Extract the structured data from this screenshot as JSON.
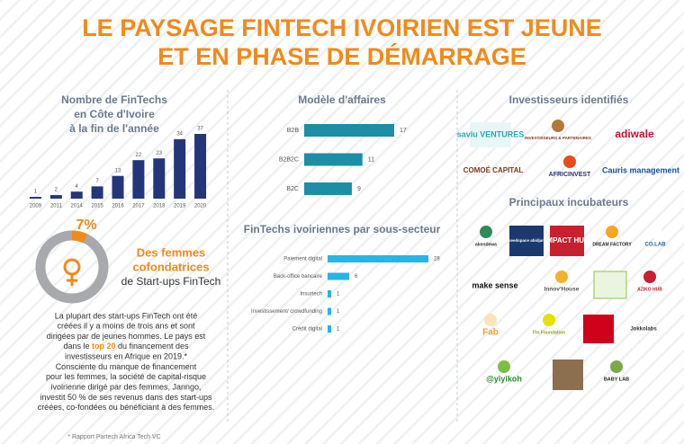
{
  "title_lines": [
    "LE PAYSAGE FINTECH IVOIRIEN EST JEUNE",
    "ET EN PHASE DE DÉMARRAGE"
  ],
  "chart_data": [
    {
      "type": "bar",
      "title_lines": [
        "Nombre de FinTechs",
        "en Côte d'Ivoire",
        "à la fin de l'année"
      ],
      "categories": [
        "2009",
        "2011",
        "2014",
        "2015",
        "2016",
        "2017",
        "2018",
        "2019",
        "2020"
      ],
      "values": [
        1,
        2,
        4,
        7,
        13,
        22,
        23,
        34,
        37
      ],
      "color": "#25357a"
    },
    {
      "type": "hbar",
      "title": "Modèle d'affaires",
      "categories": [
        "B2B",
        "B2B2C",
        "B2C"
      ],
      "values": [
        17,
        11,
        9
      ],
      "color": "#1c8ea6"
    },
    {
      "type": "hbar",
      "title": "FinTechs ivoiriennes par sous-secteur",
      "categories": [
        "Paiement digital",
        "Back-office bancaire",
        "Insurtech",
        "Investissement/ crowdfunding",
        "Crédit digital"
      ],
      "values": [
        28,
        6,
        1,
        1,
        1
      ],
      "color": "#29b3e6"
    },
    {
      "type": "donut",
      "values": [
        7
      ],
      "value_labels": [
        "7%"
      ],
      "color": "#f08a1c",
      "caption_lines": [
        "Des femmes",
        "cofondatrices",
        "de Start-ups FinTech"
      ]
    }
  ],
  "paragraph_lines": [
    "La plupart des start-ups FinTech ont été",
    "créées il y a moins de trois ans et sont",
    "dirigées par de jeunes hommes. Le pays est",
    [
      {
        "text": "dans le ",
        "bold": false
      },
      {
        "text": "top 20",
        "bold": true
      },
      {
        "text": " du financement des",
        "bold": false
      }
    ],
    "investisseurs en Afrique en 2019.*",
    "Consciente du manque de financement",
    "pour les femmes, la société de capital-risque",
    "ivoirienne dirigé par des femmes, Janngo,",
    "investit 50 % de ses revenus dans des start-ups",
    "créées, co-fondées ou bénéficiant à des femmes."
  ],
  "footnote": "* Rapport Partech Africa Tech VC",
  "investors": {
    "title": "Investisseurs identifiés",
    "logos": [
      "saviu VENTURES",
      "INVESTISSEURS & PARTENAIRES",
      "adiwale",
      "COMOÉ CAPITAL",
      "AFRICINVEST",
      "Cauris management"
    ]
  },
  "incubators": {
    "title": "Principaux incubateurs",
    "logos": [
      "akendewa",
      "seedspace abidjan",
      "IMPACT HUB",
      "DREAM FACTORY",
      "CO.LAB",
      "make sense",
      "Innov'House",
      "AZIKO HUB",
      "Fab",
      "Fin Foundation",
      "Jokkolabs",
      "@yiyikoh",
      "BABY LAB"
    ]
  }
}
